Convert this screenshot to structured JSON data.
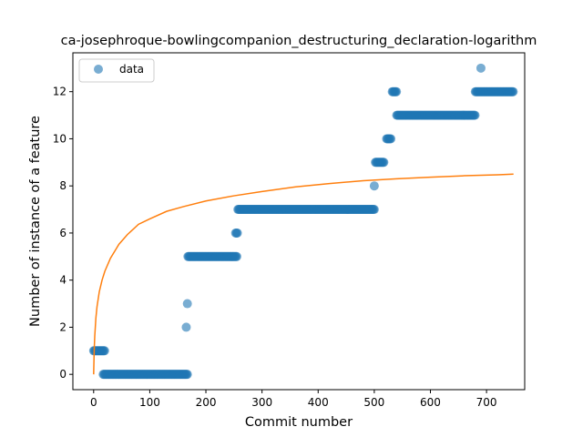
{
  "chart_data": {
    "type": "scatter",
    "title": "ca-josephroque-bowlingcompanion_destructuring_declaration-logarithm",
    "xlabel": "Commit number",
    "ylabel": "Number of instance of a feature",
    "xlim": [
      -37,
      768
    ],
    "ylim": [
      -0.65,
      13.65
    ],
    "xticks": [
      0,
      100,
      200,
      300,
      400,
      500,
      600,
      700
    ],
    "yticks": [
      0,
      2,
      4,
      6,
      8,
      10,
      12
    ],
    "grid": false,
    "legend": {
      "position": "top-left",
      "entries": [
        "data"
      ]
    },
    "colors": {
      "data": "#1f77b4",
      "fit": "#ff7f0e"
    },
    "series": [
      {
        "name": "data",
        "kind": "scatter",
        "segments": [
          {
            "x_start": 0,
            "x_end": 20,
            "y": 1
          },
          {
            "x_start": 17,
            "x_end": 167,
            "y": 0
          },
          {
            "x_start": 165,
            "x_end": 165,
            "y": 2
          },
          {
            "x_start": 167,
            "x_end": 167,
            "y": 3
          },
          {
            "x_start": 168,
            "x_end": 255,
            "y": 5
          },
          {
            "x_start": 253,
            "x_end": 257,
            "y": 6
          },
          {
            "x_start": 257,
            "x_end": 500,
            "y": 7
          },
          {
            "x_start": 500,
            "x_end": 500,
            "y": 8
          },
          {
            "x_start": 502,
            "x_end": 518,
            "y": 9
          },
          {
            "x_start": 522,
            "x_end": 530,
            "y": 10
          },
          {
            "x_start": 532,
            "x_end": 540,
            "y": 12
          },
          {
            "x_start": 540,
            "x_end": 680,
            "y": 11
          },
          {
            "x_start": 680,
            "x_end": 748,
            "y": 12
          },
          {
            "x_start": 690,
            "x_end": 690,
            "y": 13
          }
        ]
      },
      {
        "name": "fit",
        "kind": "line",
        "x": [
          0,
          1,
          2,
          4,
          6,
          10,
          15,
          20,
          30,
          45,
          60,
          80,
          100,
          130,
          160,
          200,
          250,
          300,
          360,
          420,
          480,
          540,
          600,
          660,
          720,
          748
        ],
        "y": [
          0.0,
          1.03,
          1.63,
          2.39,
          2.87,
          3.5,
          4.0,
          4.38,
          4.93,
          5.52,
          5.93,
          6.37,
          6.6,
          6.92,
          7.12,
          7.36,
          7.58,
          7.76,
          7.96,
          8.1,
          8.22,
          8.3,
          8.37,
          8.43,
          8.47,
          8.5
        ]
      }
    ]
  }
}
